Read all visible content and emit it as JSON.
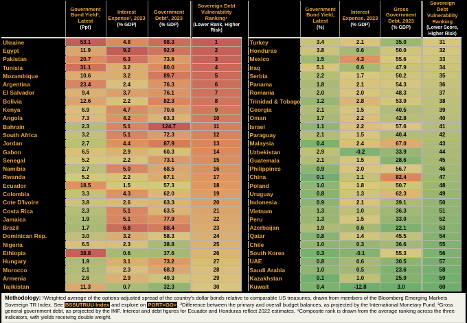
{
  "colors": {
    "background": "#000000",
    "accent_text": "#e8a33d",
    "unit_text": "#f2f2f2",
    "cell_text": "#000000",
    "grid": "#b5b5ad",
    "footer_bg": "#f2f1ea",
    "link_bg": "#141414",
    "link_text": "#f0a43c",
    "heat_green": "#6fae6d",
    "heat_khaki": "#d9c77e",
    "heat_salmon": "#dc9061",
    "heat_red": "#c45d57"
  },
  "heatmap": {
    "gradient": [
      [
        0,
        "#6fae6d"
      ],
      [
        0.25,
        "#a6b973"
      ],
      [
        0.5,
        "#d9c77e"
      ],
      [
        0.75,
        "#dc9061"
      ],
      [
        1,
        "#c45d57"
      ]
    ],
    "anchors": {
      "yield": [
        [
          0,
          0
        ],
        [
          2,
          0.3
        ],
        [
          4,
          0.45
        ],
        [
          7,
          0.55
        ],
        [
          12,
          0.65
        ],
        [
          20,
          0.76
        ],
        [
          25,
          0.82
        ],
        [
          32,
          0.9
        ],
        [
          40,
          1
        ]
      ],
      "interest": [
        [
          -13,
          0
        ],
        [
          -0.2,
          0.08
        ],
        [
          0.3,
          0.18
        ],
        [
          0.7,
          0.28
        ],
        [
          1.1,
          0.4
        ],
        [
          1.5,
          0.48
        ],
        [
          2.5,
          0.55
        ],
        [
          3.2,
          0.62
        ],
        [
          3.7,
          0.68
        ],
        [
          4.3,
          0.74
        ],
        [
          5.1,
          0.8
        ],
        [
          6.3,
          0.88
        ],
        [
          6.8,
          0.92
        ],
        [
          9.2,
          1
        ]
      ],
      "debt": [
        [
          3,
          0
        ],
        [
          25,
          0.08
        ],
        [
          35,
          0.2
        ],
        [
          40,
          0.3
        ],
        [
          45,
          0.38
        ],
        [
          50,
          0.45
        ],
        [
          57,
          0.5
        ],
        [
          63,
          0.58
        ],
        [
          68,
          0.64
        ],
        [
          73,
          0.7
        ],
        [
          78,
          0.75
        ],
        [
          83,
          0.8
        ],
        [
          90,
          0.86
        ],
        [
          98,
          0.92
        ],
        [
          125,
          1
        ]
      ],
      "rank": [
        [
          1,
          1
        ],
        [
          60,
          0
        ]
      ]
    }
  },
  "chart_data": {
    "type": "table",
    "tables": [
      {
        "name": "ranks-1-30",
        "columns": [
          {
            "key": "country",
            "title": "",
            "unit": ""
          },
          {
            "key": "yield",
            "title": "Government Bond Yield¹, Latest",
            "unit": "(Ppt)"
          },
          {
            "key": "interest",
            "title": "Interest Expense², 2023",
            "unit": "(% GDP)"
          },
          {
            "key": "debt",
            "title": "Government Debt³, 2023",
            "unit": "(% GDP)"
          },
          {
            "key": "rank",
            "title": "Sovereign Debt Vulnerability Ranking⁴",
            "unit": "(Lower Rank, Higher Risk)"
          }
        ],
        "rows": [
          [
            "Ukraine",
            53.1,
            4.8,
            98.3,
            1
          ],
          [
            "Egypt",
            11.9,
            9.2,
            92.9,
            2
          ],
          [
            "Pakistan",
            20.7,
            6.3,
            73.6,
            3
          ],
          [
            "Tunisia",
            31.1,
            3.2,
            80.0,
            4
          ],
          [
            "Mozambique",
            10.6,
            3.2,
            89.7,
            5
          ],
          [
            "Argentina",
            23.4,
            2.4,
            76.3,
            6
          ],
          [
            "El Salvador",
            9.4,
            3.7,
            76.1,
            7
          ],
          [
            "Bolivia",
            12.6,
            2.2,
            82.3,
            8
          ],
          [
            "Kenya",
            6.9,
            4.7,
            70.6,
            9
          ],
          [
            "Angola",
            7.3,
            4.2,
            63.3,
            10
          ],
          [
            "Bahrain",
            2.3,
            5.1,
            124.7,
            11
          ],
          [
            "South Africa",
            3.2,
            5.1,
            72.3,
            12
          ],
          [
            "Jordan",
            2.7,
            4.4,
            87.9,
            13
          ],
          [
            "Gabon",
            6.5,
            2.9,
            60.3,
            14
          ],
          [
            "Senegal",
            5.2,
            2.2,
            73.1,
            15
          ],
          [
            "Namibia",
            2.7,
            5.0,
            68.5,
            16
          ],
          [
            "Rwanda",
            5.2,
            2.2,
            67.1,
            17
          ],
          [
            "Ecuador",
            18.5,
            1.5,
            57.3,
            18
          ],
          [
            "Colombia",
            3.3,
            4.3,
            62.0,
            19
          ],
          [
            "Cote D'Ivoire",
            3.8,
            2.6,
            63.3,
            20
          ],
          [
            "Costa Rica",
            2.3,
            5.1,
            63.5,
            21
          ],
          [
            "Jamaica",
            1.9,
            5.1,
            77.9,
            22
          ],
          [
            "Brazil",
            1.7,
            6.8,
            88.4,
            23
          ],
          [
            "Dominican Rep.",
            3.0,
            3.2,
            58.3,
            24
          ],
          [
            "Nigeria",
            6.5,
            2.3,
            38.8,
            25
          ],
          [
            "Ethiopia",
            38.8,
            0.6,
            37.6,
            26
          ],
          [
            "Hungary",
            1.9,
            3.1,
            73.2,
            27
          ],
          [
            "Morocco",
            2.1,
            2.3,
            68.3,
            28
          ],
          [
            "Armenia",
            2.6,
            2.9,
            49.3,
            29
          ],
          [
            "Tajikistan",
            11.3,
            0.7,
            32.3,
            30
          ]
        ]
      },
      {
        "name": "ranks-31-60",
        "columns": [
          {
            "key": "country",
            "title": "",
            "unit": ""
          },
          {
            "key": "yield",
            "title": "Government Bond Yield, Latest",
            "unit": "(%)"
          },
          {
            "key": "interest",
            "title": "Interest Expense, 2023",
            "unit": "(% GDP)"
          },
          {
            "key": "debt",
            "title": "Gross Government Debt, 2023",
            "unit": "(% GDP)"
          },
          {
            "key": "rank",
            "title": "Sovereign Debt Vulnerability Ranking",
            "unit": "(Lower Score, Higher Risk)"
          }
        ],
        "rows": [
          [
            "Turkey",
            3.4,
            2.1,
            35.0,
            31
          ],
          [
            "Honduras",
            3.8,
            0.6,
            50.0,
            32
          ],
          [
            "Mexico",
            1.5,
            4.3,
            55.6,
            33
          ],
          [
            "Iraq",
            5.1,
            0.6,
            47.9,
            34
          ],
          [
            "Serbia",
            2.2,
            1.7,
            50.2,
            35
          ],
          [
            "Panama",
            1.8,
            2.1,
            54.3,
            36
          ],
          [
            "Romania",
            2.0,
            2.0,
            48.3,
            37
          ],
          [
            "Trinidad & Tobago",
            1.2,
            2.8,
            53.9,
            38
          ],
          [
            "Georgia",
            2.1,
            1.5,
            40.5,
            39
          ],
          [
            "Oman",
            1.7,
            2.2,
            42.8,
            40
          ],
          [
            "Israel",
            1.1,
            2.2,
            57.6,
            41
          ],
          [
            "Paraguay",
            2.1,
            1.5,
            40.4,
            42
          ],
          [
            "Malaysia",
            0.4,
            2.4,
            67.0,
            43
          ],
          [
            "Uzbekistan",
            2.9,
            -0.2,
            33.9,
            44
          ],
          [
            "Guatemala",
            2.1,
            1.5,
            28.6,
            45
          ],
          [
            "Philippines",
            0.9,
            2.0,
            56.7,
            46
          ],
          [
            "China",
            0.1,
            1.1,
            82.4,
            47
          ],
          [
            "Poland",
            1.0,
            1.8,
            50.7,
            48
          ],
          [
            "Uruguay",
            0.8,
            1.3,
            62.3,
            49
          ],
          [
            "Indonesia",
            0.9,
            2.1,
            39.1,
            50
          ],
          [
            "Vietnam",
            1.3,
            1.0,
            36.3,
            51
          ],
          [
            "Peru",
            1.3,
            1.5,
            33.0,
            52
          ],
          [
            "Azerbaijan",
            1.9,
            0.6,
            22.1,
            53
          ],
          [
            "Qatar",
            0.8,
            1.4,
            45.5,
            54
          ],
          [
            "Chile",
            1.0,
            0.3,
            36.6,
            55
          ],
          [
            "South Korea",
            0.3,
            -0.1,
            55.3,
            56
          ],
          [
            "UAE",
            0.8,
            0.6,
            30.5,
            57
          ],
          [
            "Saudi Arabia",
            1.0,
            0.5,
            23.6,
            58
          ],
          [
            "Kazakhstan",
            0.1,
            1.0,
            25.9,
            59
          ],
          [
            "Kuwait",
            0.4,
            -12.8,
            3.0,
            60
          ]
        ]
      }
    ]
  },
  "footer": {
    "segments": [
      {
        "style": "bold",
        "text": "Methodology: "
      },
      {
        "style": "normal",
        "text": "¹Weighted average of the options-adjusted spread of the country's dollar bonds relative to comparable US treasuries, drawn from members of the Bloomberg Emerging Markets Sovereign TR Index. See "
      },
      {
        "style": "link",
        "text": "BSSUTRUU Index"
      },
      {
        "style": "normal",
        "text": " and explore on "
      },
      {
        "style": "link",
        "text": "PORT<GO>"
      },
      {
        "style": "normal",
        "text": ". ²Difference between the primary and overall budget balances, as projected by the International Monetary Fund. ³Gross general government debt, as projected by the IMF. Interest and debt figures for Ecuador and Honduras reflect 2022 estimates. ⁴Composite rank is drawn from the average ranking across the three indicators, with yields receiving double weight."
      }
    ]
  }
}
